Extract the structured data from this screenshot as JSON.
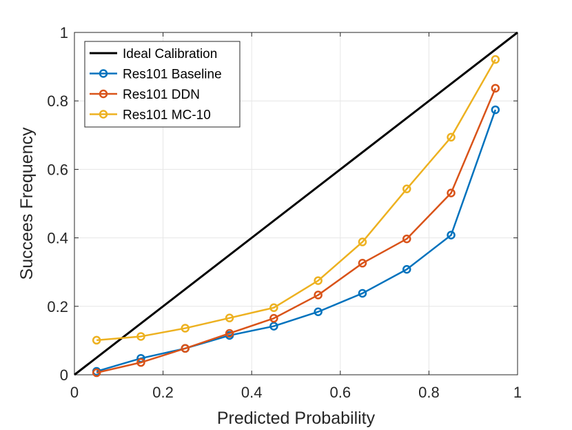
{
  "chart_data": {
    "type": "line",
    "title": "",
    "xlabel": "Predicted Probability",
    "ylabel": "Succees Frequency",
    "xlim": [
      0,
      1
    ],
    "ylim": [
      0,
      1
    ],
    "xticks": [
      0,
      0.2,
      0.4,
      0.6,
      0.8,
      1
    ],
    "yticks": [
      0,
      0.2,
      0.4,
      0.6,
      0.8,
      1
    ],
    "xtick_labels": [
      "0",
      "0.2",
      "0.4",
      "0.6",
      "0.8",
      "1"
    ],
    "ytick_labels": [
      "0",
      "0.2",
      "0.4",
      "0.6",
      "0.8",
      "1"
    ],
    "grid": true,
    "legend_position": "top-left",
    "series": [
      {
        "name": "Ideal Calibration",
        "color": "#000000",
        "marker": "none",
        "x": [
          0,
          1
        ],
        "y": [
          0,
          1
        ]
      },
      {
        "name": "Res101 Baseline",
        "color": "#0072BD",
        "marker": "circle",
        "x": [
          0.05,
          0.15,
          0.25,
          0.35,
          0.45,
          0.55,
          0.65,
          0.75,
          0.85,
          0.95
        ],
        "y": [
          0.01,
          0.048,
          0.077,
          0.115,
          0.142,
          0.184,
          0.238,
          0.308,
          0.408,
          0.774
        ]
      },
      {
        "name": "Res101 DDN",
        "color": "#D95319",
        "marker": "circle",
        "x": [
          0.05,
          0.15,
          0.25,
          0.35,
          0.45,
          0.55,
          0.65,
          0.75,
          0.85,
          0.95
        ],
        "y": [
          0.006,
          0.036,
          0.077,
          0.121,
          0.165,
          0.233,
          0.326,
          0.397,
          0.531,
          0.837
        ]
      },
      {
        "name": "Res101 MC-10",
        "color": "#EDB120",
        "marker": "circle",
        "x": [
          0.05,
          0.15,
          0.25,
          0.35,
          0.45,
          0.55,
          0.65,
          0.75,
          0.85,
          0.95
        ],
        "y": [
          0.101,
          0.112,
          0.136,
          0.166,
          0.196,
          0.275,
          0.388,
          0.543,
          0.694,
          0.921
        ]
      }
    ]
  }
}
